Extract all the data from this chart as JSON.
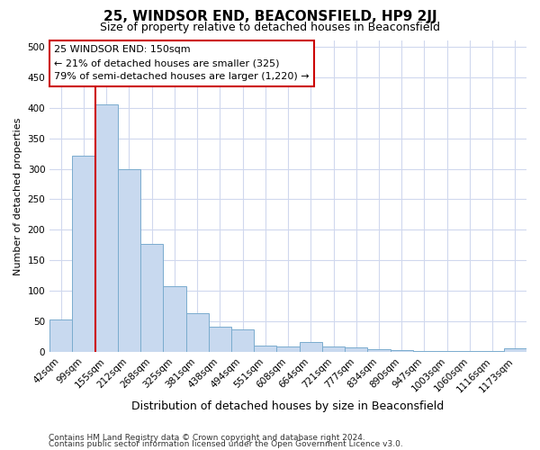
{
  "title": "25, WINDSOR END, BEACONSFIELD, HP9 2JJ",
  "subtitle": "Size of property relative to detached houses in Beaconsfield",
  "xlabel": "Distribution of detached houses by size in Beaconsfield",
  "ylabel": "Number of detached properties",
  "categories": [
    "42sqm",
    "99sqm",
    "155sqm",
    "212sqm",
    "268sqm",
    "325sqm",
    "381sqm",
    "438sqm",
    "494sqm",
    "551sqm",
    "608sqm",
    "664sqm",
    "721sqm",
    "777sqm",
    "834sqm",
    "890sqm",
    "947sqm",
    "1003sqm",
    "1060sqm",
    "1116sqm",
    "1173sqm"
  ],
  "values": [
    54,
    322,
    405,
    300,
    177,
    108,
    63,
    41,
    37,
    11,
    9,
    16,
    9,
    7,
    5,
    3,
    1,
    1,
    1,
    1,
    6
  ],
  "bar_color": "#c8d9ef",
  "bar_edge_color": "#7aacce",
  "ref_line_color": "#cc0000",
  "ref_line_x": 1.5,
  "annotation_line1": "25 WINDSOR END: 150sqm",
  "annotation_line2": "← 21% of detached houses are smaller (325)",
  "annotation_line3": "79% of semi-detached houses are larger (1,220) →",
  "ylim": [
    0,
    510
  ],
  "yticks": [
    0,
    50,
    100,
    150,
    200,
    250,
    300,
    350,
    400,
    450,
    500
  ],
  "footer_line1": "Contains HM Land Registry data © Crown copyright and database right 2024.",
  "footer_line2": "Contains public sector information licensed under the Open Government Licence v3.0.",
  "bg_color": "#ffffff",
  "grid_color": "#d0d8ee",
  "title_fontsize": 11,
  "subtitle_fontsize": 9,
  "xlabel_fontsize": 9,
  "ylabel_fontsize": 8,
  "tick_fontsize": 7.5,
  "footer_fontsize": 6.5
}
